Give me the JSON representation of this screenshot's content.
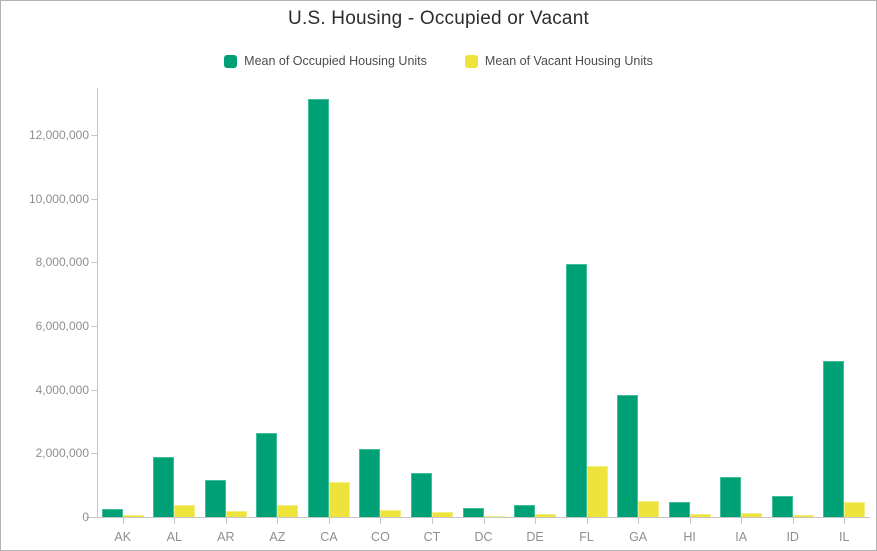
{
  "chart": {
    "title": "U.S. Housing - Occupied or Vacant"
  },
  "chart_data": {
    "type": "bar",
    "title": "U.S. Housing - Occupied or Vacant",
    "categories": [
      "AK",
      "AL",
      "AR",
      "AZ",
      "CA",
      "CO",
      "CT",
      "DC",
      "DE",
      "FL",
      "GA",
      "HI",
      "IA",
      "ID",
      "IL"
    ],
    "series": [
      {
        "name": "Mean of Occupied Housing Units",
        "color": "#00a077",
        "edge_color": "#3fbe97",
        "values": [
          250000,
          1880000,
          1150000,
          2650000,
          13120000,
          2120000,
          1380000,
          290000,
          370000,
          7950000,
          3820000,
          470000,
          1270000,
          650000,
          4900000
        ]
      },
      {
        "name": "Mean of Vacant Housing Units",
        "color": "#ede33b",
        "edge_color": "#f3ed86",
        "values": [
          60000,
          370000,
          190000,
          390000,
          1100000,
          230000,
          150000,
          40000,
          100000,
          1600000,
          500000,
          80000,
          140000,
          70000,
          470000
        ]
      }
    ],
    "xlabel": "",
    "ylabel": "",
    "ylim": [
      0,
      13200000
    ],
    "y_ticks": [
      0,
      2000000,
      4000000,
      6000000,
      8000000,
      10000000,
      12000000
    ],
    "y_tick_labels": [
      "0",
      "2,000,000",
      "4,000,000",
      "6,000,000",
      "8,000,000",
      "10,000,000",
      "12,000,000"
    ],
    "grid": false,
    "legend_position": "top"
  }
}
